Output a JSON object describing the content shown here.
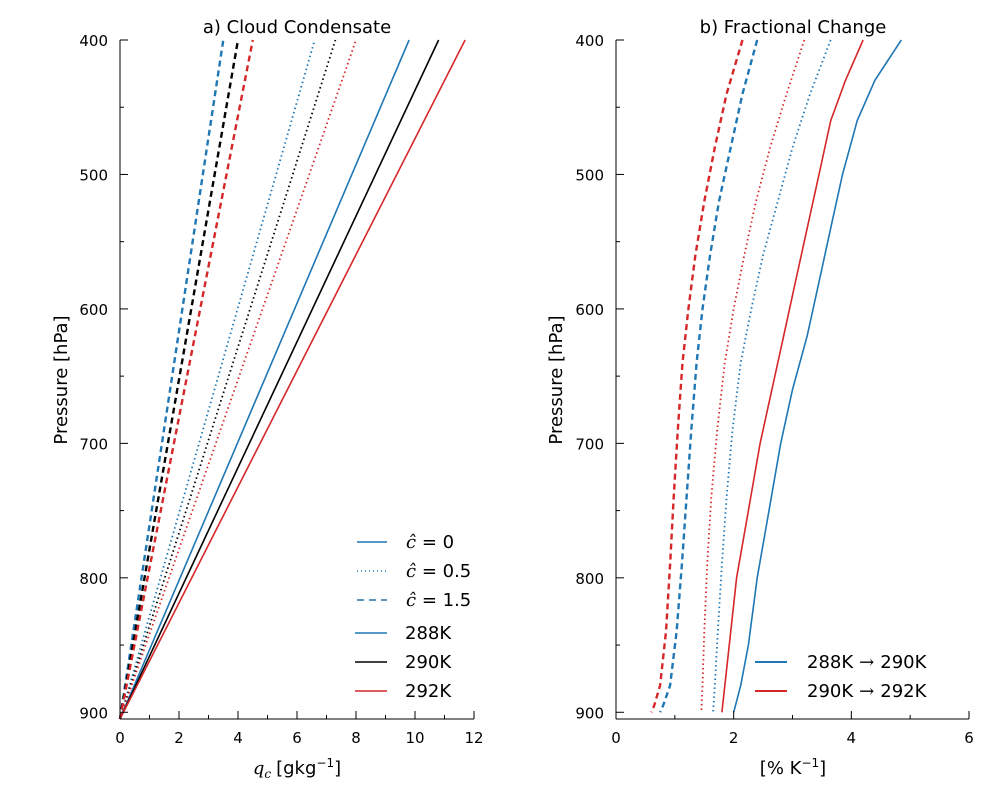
{
  "chart_data": [
    {
      "type": "line",
      "title": "a) Cloud Condensate",
      "xlabel_sym": "q",
      "xlabel_sub": "c",
      "xlabel_unit": "[gkg",
      "xlabel_exp": "−1",
      "xlabel_close": "]",
      "ylabel": "Pressure [hPa]",
      "xlim": [
        0,
        12
      ],
      "ylim": [
        905,
        400
      ],
      "y_inverted": true,
      "xticks": [
        0,
        2,
        4,
        6,
        8,
        10,
        12
      ],
      "yticks": [
        400,
        500,
        600,
        700,
        800,
        900
      ],
      "legend_location": "lower right",
      "legend_style_entries": [
        {
          "sym": "ĉ",
          "label": " = 0",
          "dash": "solid",
          "color": "#1f77b4"
        },
        {
          "sym": "ĉ",
          "label": " = 0.5",
          "dash": "dotted",
          "color": "#1f77b4"
        },
        {
          "sym": "ĉ",
          "label": " = 1.5",
          "dash": "dashed",
          "color": "#1f77b4"
        }
      ],
      "legend_color_entries": [
        {
          "label": "288K",
          "color": "#1f77b4"
        },
        {
          "label": "290K",
          "color": "#000000"
        },
        {
          "label": "292K",
          "color": "#d62728"
        }
      ],
      "series": [
        {
          "name": "288K",
          "style": "solid",
          "color": "#1f77b4",
          "x": [
            0,
            9.8
          ],
          "y": [
            905,
            400
          ]
        },
        {
          "name": "290K",
          "style": "solid",
          "color": "#000000",
          "x": [
            0,
            10.8
          ],
          "y": [
            905,
            400
          ]
        },
        {
          "name": "292K",
          "style": "solid",
          "color": "#d62728",
          "x": [
            0,
            11.7
          ],
          "y": [
            905,
            400
          ]
        },
        {
          "name": "288K",
          "style": "dotted",
          "color": "#1f77b4",
          "x": [
            0,
            6.6
          ],
          "y": [
            905,
            400
          ]
        },
        {
          "name": "290K",
          "style": "dotted",
          "color": "#000000",
          "x": [
            0,
            7.3
          ],
          "y": [
            905,
            400
          ]
        },
        {
          "name": "292K",
          "style": "dotted",
          "color": "#d62728",
          "x": [
            0,
            8.0
          ],
          "y": [
            905,
            400
          ]
        },
        {
          "name": "288K",
          "style": "dashed",
          "color": "#1f77b4",
          "x": [
            0,
            3.5
          ],
          "y": [
            905,
            400
          ]
        },
        {
          "name": "290K",
          "style": "dashed",
          "color": "#000000",
          "x": [
            0,
            4.0
          ],
          "y": [
            905,
            400
          ]
        },
        {
          "name": "292K",
          "style": "dashed",
          "color": "#d62728",
          "x": [
            0,
            4.5
          ],
          "y": [
            905,
            400
          ]
        }
      ]
    },
    {
      "type": "line",
      "title": "b) Fractional Change",
      "xlabel_unit": "[% K",
      "xlabel_exp": "−1",
      "xlabel_close": "]",
      "ylabel": "Pressure [hPa]",
      "xlim": [
        0,
        6
      ],
      "ylim": [
        905,
        400
      ],
      "y_inverted": true,
      "xticks": [
        0,
        2,
        4,
        6
      ],
      "yticks": [
        400,
        500,
        600,
        700,
        800,
        900
      ],
      "legend_location": "lower right",
      "legend_arrow": "→",
      "legend_entries": [
        {
          "from": "288K",
          "to": "290K",
          "color": "#1f77b4"
        },
        {
          "from": "290K",
          "to": "292K",
          "color": "#d62728"
        }
      ],
      "series": [
        {
          "name": "288K → 290K",
          "style": "solid",
          "color": "#1f77b4",
          "x": [
            4.85,
            4.4,
            4.1,
            3.85,
            3.65,
            3.45,
            3.25,
            3.0,
            2.8,
            2.6,
            2.4,
            2.25,
            2.12,
            2.0
          ],
          "y": [
            400,
            430,
            460,
            500,
            540,
            580,
            620,
            660,
            700,
            750,
            800,
            850,
            880,
            900
          ]
        },
        {
          "name": "290K → 292K",
          "style": "solid",
          "color": "#d62728",
          "x": [
            4.2,
            3.9,
            3.65,
            3.45,
            3.25,
            3.05,
            2.85,
            2.65,
            2.45,
            2.25,
            2.05,
            1.9,
            1.8
          ],
          "y": [
            400,
            430,
            460,
            500,
            540,
            580,
            620,
            660,
            700,
            750,
            800,
            860,
            900
          ]
        },
        {
          "name": "288K → 290K",
          "style": "dotted",
          "color": "#1f77b4",
          "x": [
            3.65,
            3.3,
            3.0,
            2.75,
            2.5,
            2.3,
            2.12,
            1.98,
            1.88,
            1.8,
            1.73,
            1.68,
            1.65
          ],
          "y": [
            400,
            440,
            480,
            520,
            560,
            600,
            640,
            690,
            740,
            790,
            840,
            880,
            900
          ]
        },
        {
          "name": "290K → 292K",
          "style": "dotted",
          "color": "#d62728",
          "x": [
            3.2,
            2.9,
            2.62,
            2.38,
            2.18,
            2.0,
            1.85,
            1.72,
            1.62,
            1.55,
            1.5,
            1.47,
            1.45
          ],
          "y": [
            400,
            440,
            480,
            520,
            560,
            600,
            640,
            690,
            740,
            790,
            840,
            880,
            900
          ]
        },
        {
          "name": "288K → 290K",
          "style": "dashed",
          "color": "#1f77b4",
          "x": [
            2.4,
            2.15,
            1.95,
            1.75,
            1.6,
            1.47,
            1.37,
            1.28,
            1.2,
            1.12,
            1.03,
            0.92,
            0.8,
            0.75
          ],
          "y": [
            400,
            440,
            480,
            520,
            560,
            600,
            640,
            690,
            740,
            790,
            840,
            880,
            895,
            900
          ]
        },
        {
          "name": "290K → 292K",
          "style": "dashed",
          "color": "#d62728",
          "x": [
            2.15,
            1.88,
            1.68,
            1.5,
            1.35,
            1.23,
            1.13,
            1.05,
            0.98,
            0.92,
            0.85,
            0.75,
            0.65,
            0.6
          ],
          "y": [
            400,
            440,
            480,
            520,
            560,
            600,
            640,
            690,
            740,
            790,
            840,
            880,
            895,
            900
          ]
        }
      ]
    }
  ]
}
